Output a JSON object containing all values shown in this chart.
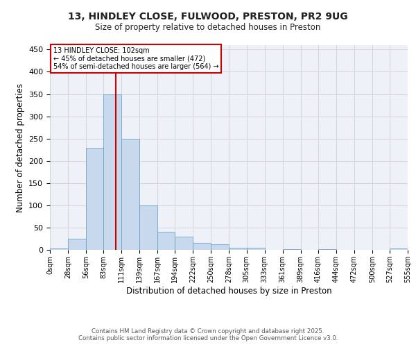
{
  "title_line1": "13, HINDLEY CLOSE, FULWOOD, PRESTON, PR2 9UG",
  "title_line2": "Size of property relative to detached houses in Preston",
  "xlabel": "Distribution of detached houses by size in Preston",
  "ylabel": "Number of detached properties",
  "bar_edges": [
    0,
    28,
    56,
    83,
    111,
    139,
    167,
    194,
    222,
    250,
    278,
    305,
    333,
    361,
    389,
    416,
    444,
    472,
    500,
    527,
    555
  ],
  "bar_heights": [
    3,
    25,
    230,
    350,
    250,
    100,
    40,
    30,
    15,
    12,
    5,
    5,
    0,
    2,
    0,
    2,
    0,
    0,
    0,
    3
  ],
  "bar_color": "#c8d9ed",
  "bar_edgecolor": "#5a9ac8",
  "property_size": 102,
  "vline_color": "#cc0000",
  "annotation_text": "13 HINDLEY CLOSE: 102sqm\n← 45% of detached houses are smaller (472)\n54% of semi-detached houses are larger (564) →",
  "annotation_box_edgecolor": "#cc0000",
  "annotation_box_facecolor": "#ffffff",
  "ylim": [
    0,
    460
  ],
  "yticks": [
    0,
    50,
    100,
    150,
    200,
    250,
    300,
    350,
    400,
    450
  ],
  "grid_color": "#d0d0d0",
  "background_color": "#eef2f8",
  "footer_line1": "Contains HM Land Registry data © Crown copyright and database right 2025.",
  "footer_line2": "Contains public sector information licensed under the Open Government Licence v3.0.",
  "tick_labels": [
    "0sqm",
    "28sqm",
    "56sqm",
    "83sqm",
    "111sqm",
    "139sqm",
    "167sqm",
    "194sqm",
    "222sqm",
    "250sqm",
    "278sqm",
    "305sqm",
    "333sqm",
    "361sqm",
    "389sqm",
    "416sqm",
    "444sqm",
    "472sqm",
    "500sqm",
    "527sqm",
    "555sqm"
  ]
}
